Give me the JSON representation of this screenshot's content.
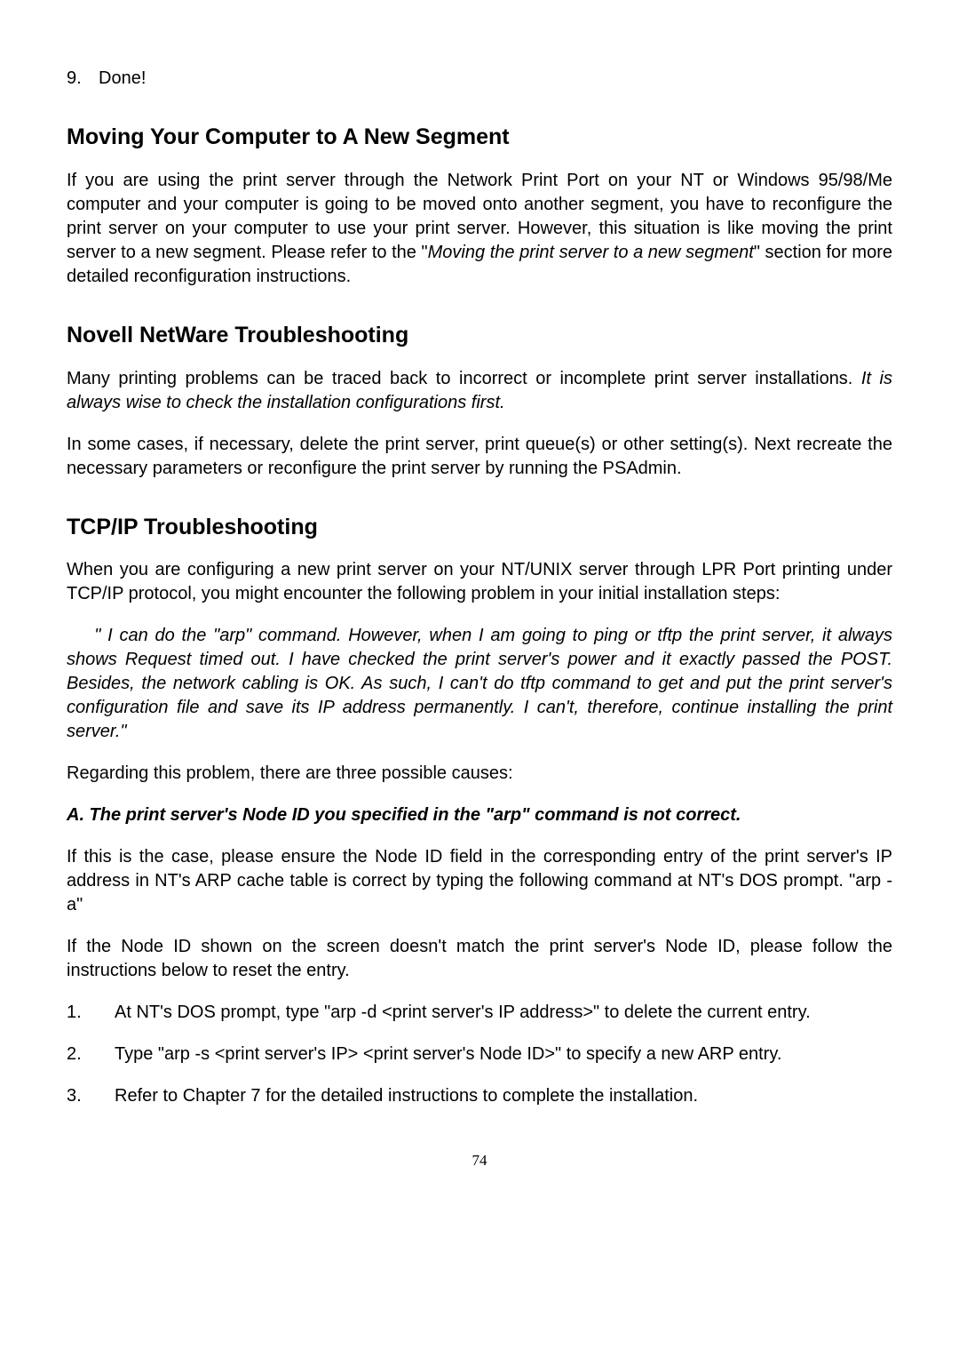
{
  "item9": {
    "num": "9.",
    "text": "Done!"
  },
  "section1": {
    "heading": "Moving Your Computer to A New Segment",
    "p1_before": "If you are using the print server through the Network Print Port on your NT or Windows 95/98/Me computer and your computer is going to be moved onto another segment, you have to reconfigure the print server on your computer to use your print server. However, this situation is like moving the print server to a new segment. Please refer to the \"",
    "p1_italic": "Moving the print server to a new segment",
    "p1_after": "\" section for more detailed reconfiguration instructions."
  },
  "section2": {
    "heading": "Novell NetWare Troubleshooting",
    "p1_before": "Many printing problems can be traced back to incorrect or incomplete print server installations. ",
    "p1_italic": "It is always wise to check the installation configurations first.",
    "p2": "In some cases, if necessary, delete the print server, print queue(s) or other setting(s). Next recreate the necessary parameters or reconfigure the print server by running the PSAdmin."
  },
  "section3": {
    "heading": "TCP/IP Troubleshooting",
    "p1": "When you are configuring a new print server on your NT/UNIX server through LPR Port printing under TCP/IP protocol, you might encounter the following problem in your initial installation steps:",
    "quote": "\" I can do the \"arp\" command. However, when I am going to ping or tftp the print server, it always shows Request timed out. I have checked the print server's power and it exactly passed the POST. Besides, the network cabling is OK. As such, I can't do tftp command to get and put the print server's configuration file and save its IP address permanently. I can't, therefore, continue installing the print server.\"",
    "p2": "Regarding this problem, there are three possible causes:",
    "subheadA": "A.  The print server's Node ID you specified in the \"arp\" command is not correct.",
    "p3": "If this is the case, please ensure the Node ID field in the corresponding entry of the print server's IP address in NT's ARP cache table is correct by typing the following command at NT's DOS prompt. \"arp -a\"",
    "p4": "If the Node ID shown on the screen doesn't match the print server's Node ID, please follow the instructions below to reset the entry.",
    "list": {
      "item1_num": "1.",
      "item1_text": "At NT's DOS prompt, type \"arp -d <print server's IP address>\" to delete the current entry.",
      "item2_num": "2.",
      "item2_text": "Type \"arp -s <print server's IP> <print server's Node ID>\" to specify a new ARP entry.",
      "item3_num": "3.",
      "item3_text": "Refer to Chapter 7 for the detailed instructions to complete the installation."
    }
  },
  "pageNumber": "74"
}
